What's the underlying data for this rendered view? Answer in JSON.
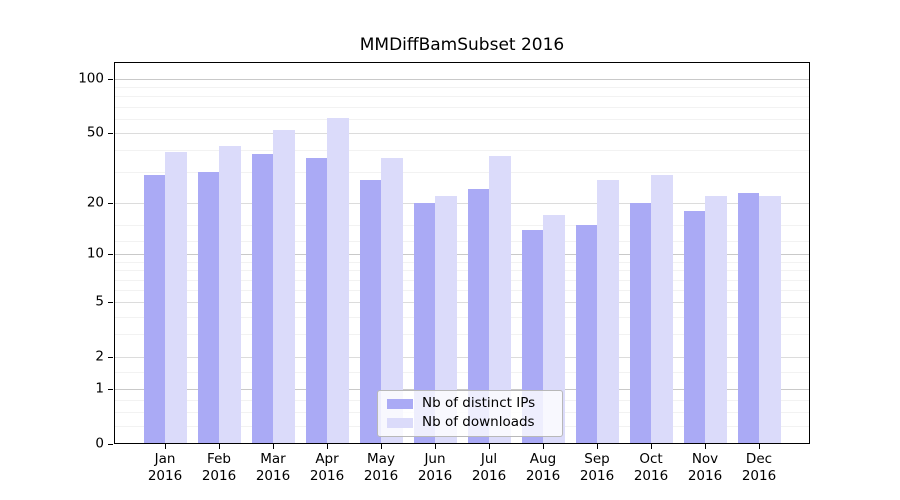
{
  "title": "MMDiffBamSubset 2016",
  "chart_data": {
    "type": "bar",
    "title": "MMDiffBamSubset 2016",
    "categories": [
      "Jan 2016",
      "Feb 2016",
      "Mar 2016",
      "Apr 2016",
      "May 2016",
      "Jun 2016",
      "Jul 2016",
      "Aug 2016",
      "Sep 2016",
      "Oct 2016",
      "Nov 2016",
      "Dec 2016"
    ],
    "series": [
      {
        "name": "Nb of distinct IPs",
        "color": "#aaaaf5",
        "values": [
          29,
          30,
          38,
          36,
          27,
          20,
          24,
          14,
          15,
          20,
          18,
          23
        ]
      },
      {
        "name": "Nb of downloads",
        "color": "#dbdbfa",
        "values": [
          39,
          42,
          52,
          61,
          36,
          22,
          37,
          17,
          27,
          29,
          22,
          22
        ]
      }
    ],
    "xlabel": "",
    "ylabel": "",
    "yscale": "log1p",
    "yticks": [
      0,
      1,
      2,
      5,
      10,
      20,
      50,
      100
    ],
    "decade_ticks": [
      1,
      10,
      100
    ],
    "minor_gridline_values": [
      0.25,
      0.5,
      0.75,
      1.5,
      3,
      4,
      6,
      7,
      8,
      9,
      12,
      15,
      30,
      40,
      60,
      70,
      80,
      90
    ],
    "ylim": [
      0,
      124
    ],
    "grid": true,
    "legend_position": "lower center"
  }
}
